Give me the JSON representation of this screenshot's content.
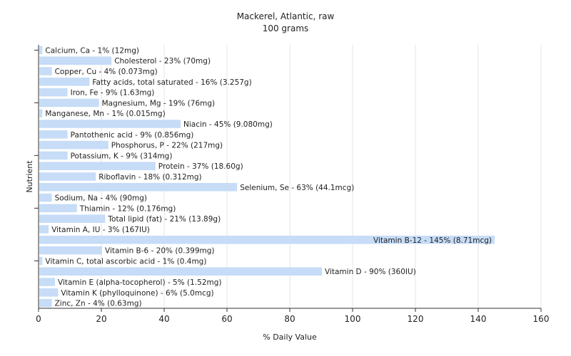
{
  "chart_data": {
    "type": "bar",
    "orientation": "horizontal",
    "title": "Mackerel, Atlantic, raw",
    "subtitle": "100 grams",
    "xlabel": "% Daily Value",
    "ylabel": "Nutrient",
    "xlim": [
      0,
      160
    ],
    "xticks": [
      0,
      20,
      40,
      60,
      80,
      100,
      120,
      140,
      160
    ],
    "grid": true,
    "bar_color": "#c6dcf7",
    "categories": [
      "Calcium, Ca",
      "Cholesterol",
      "Copper, Cu",
      "Fatty acids, total saturated",
      "Iron, Fe",
      "Magnesium, Mg",
      "Manganese, Mn",
      "Niacin",
      "Pantothenic acid",
      "Phosphorus, P",
      "Potassium, K",
      "Protein",
      "Riboflavin",
      "Selenium, Se",
      "Sodium, Na",
      "Thiamin",
      "Total lipid (fat)",
      "Vitamin A, IU",
      "Vitamin B-12",
      "Vitamin B-6",
      "Vitamin C, total ascorbic acid",
      "Vitamin D",
      "Vitamin E (alpha-tocopherol)",
      "Vitamin K (phylloquinone)",
      "Zinc, Zn"
    ],
    "values": [
      1,
      23,
      4,
      16,
      9,
      19,
      1,
      45,
      9,
      22,
      9,
      37,
      18,
      63,
      4,
      12,
      21,
      3,
      145,
      20,
      1,
      90,
      5,
      6,
      4
    ],
    "labels": [
      "Calcium, Ca - 1% (12mg)",
      "Cholesterol - 23% (70mg)",
      "Copper, Cu - 4% (0.073mg)",
      "Fatty acids, total saturated - 16% (3.257g)",
      "Iron, Fe - 9% (1.63mg)",
      "Magnesium, Mg - 19% (76mg)",
      "Manganese, Mn - 1% (0.015mg)",
      "Niacin - 45% (9.080mg)",
      "Pantothenic acid - 9% (0.856mg)",
      "Phosphorus, P - 22% (217mg)",
      "Potassium, K - 9% (314mg)",
      "Protein - 37% (18.60g)",
      "Riboflavin - 18% (0.312mg)",
      "Selenium, Se - 63% (44.1mcg)",
      "Sodium, Na - 4% (90mg)",
      "Thiamin - 12% (0.176mg)",
      "Total lipid (fat) - 21% (13.89g)",
      "Vitamin A, IU - 3% (167IU)",
      "Vitamin B-12 - 145% (8.71mcg)",
      "Vitamin B-6 - 20% (0.399mg)",
      "Vitamin C, total ascorbic acid - 1% (0.4mg)",
      "Vitamin D - 90% (360IU)",
      "Vitamin E (alpha-tocopherol) - 5% (1.52mg)",
      "Vitamin K (phylloquinone) - 6% (5.0mcg)",
      "Zinc, Zn - 4% (0.63mg)"
    ]
  }
}
